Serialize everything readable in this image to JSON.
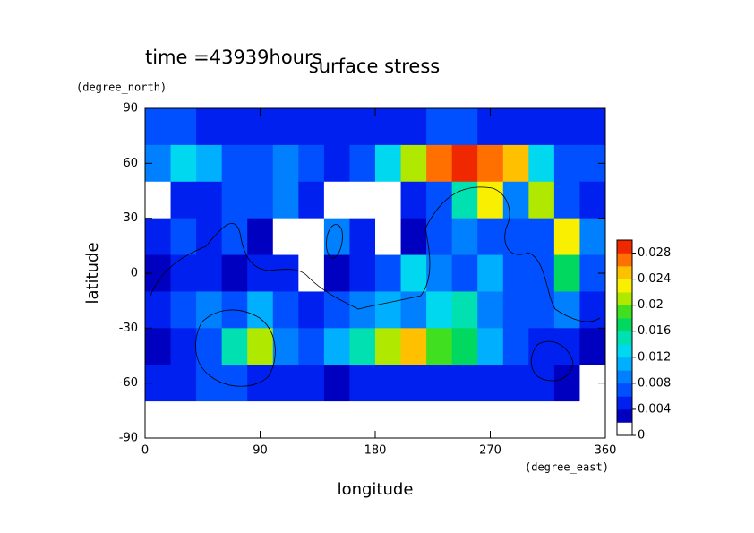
{
  "chart_data": {
    "type": "heatmap",
    "title": "surface stress",
    "subtitle": "time =43939hours",
    "xlabel": "longitude",
    "ylabel": "latitude",
    "xunit": "(degree_east)",
    "yunit": "(degree_north)",
    "xlim": [
      0,
      360
    ],
    "ylim": [
      -90,
      90
    ],
    "xticks": [
      0,
      90,
      180,
      270,
      360
    ],
    "yticks": [
      -90,
      -60,
      -30,
      0,
      30,
      60,
      90
    ],
    "x": [
      10,
      30,
      50,
      70,
      90,
      110,
      130,
      150,
      170,
      190,
      210,
      230,
      250,
      270,
      290,
      310,
      330,
      350
    ],
    "y": [
      80,
      60,
      40,
      20,
      0,
      -20,
      -40,
      -60,
      -80
    ],
    "z": [
      [
        0.006,
        0.006,
        0.005,
        0.004,
        0.004,
        0.005,
        0.004,
        0.004,
        0.004,
        0.004,
        0.005,
        0.006,
        0.006,
        0.005,
        0.004,
        0.004,
        0.004,
        0.004
      ],
      [
        0.008,
        0.012,
        0.01,
        0.006,
        0.006,
        0.008,
        0.006,
        0.004,
        0.006,
        0.012,
        0.02,
        0.026,
        0.028,
        0.026,
        0.024,
        0.012,
        0.006,
        0.006
      ],
      [
        0,
        0.004,
        0.004,
        0.006,
        0.006,
        0.008,
        0.004,
        0,
        0,
        0,
        0.004,
        0.006,
        0.014,
        0.022,
        0.008,
        0.02,
        0.006,
        0.004
      ],
      [
        0.004,
        0.006,
        0.004,
        0.006,
        0.002,
        0,
        0,
        0.008,
        0.004,
        0,
        0.002,
        0.006,
        0.008,
        0.006,
        0.006,
        0.006,
        0.022,
        0.008
      ],
      [
        0.002,
        0.004,
        0.004,
        0.002,
        0.004,
        0.004,
        0,
        0.002,
        0.004,
        0.006,
        0.012,
        0.008,
        0.006,
        0.01,
        0.006,
        0.006,
        0.016,
        0.006
      ],
      [
        0.004,
        0.006,
        0.008,
        0.006,
        0.01,
        0.006,
        0.004,
        0.006,
        0.008,
        0.01,
        0.008,
        0.012,
        0.014,
        0.008,
        0.006,
        0.006,
        0.008,
        0.004
      ],
      [
        0.002,
        0.004,
        0.006,
        0.014,
        0.02,
        0.008,
        0.006,
        0.01,
        0.014,
        0.02,
        0.024,
        0.018,
        0.016,
        0.01,
        0.006,
        0.004,
        0.004,
        0.002
      ],
      [
        0.004,
        0.004,
        0.006,
        0.006,
        0.004,
        0.004,
        0.004,
        0.002,
        0.004,
        0.004,
        0.004,
        0.004,
        0.004,
        0.004,
        0.004,
        0.004,
        0.002,
        0
      ],
      [
        0,
        0,
        0,
        0,
        0,
        0,
        0,
        0,
        0,
        0,
        0,
        0,
        0,
        0,
        0,
        0,
        0,
        0
      ]
    ],
    "colorbar": {
      "levels": [
        0,
        0.002,
        0.004,
        0.006,
        0.008,
        0.01,
        0.012,
        0.014,
        0.016,
        0.018,
        0.02,
        0.022,
        0.024,
        0.026,
        0.028,
        0.03
      ],
      "colors": [
        "#ffffff",
        "#0000c0",
        "#0020f0",
        "#0050ff",
        "#0080ff",
        "#00b0ff",
        "#00d8f0",
        "#00e0b0",
        "#00d860",
        "#40e020",
        "#b0e800",
        "#f8f000",
        "#ffc000",
        "#ff7000",
        "#f02800"
      ],
      "ticks": [
        0,
        0.004,
        0.008,
        0.012,
        0.016,
        0.02,
        0.024,
        0.028
      ]
    }
  }
}
